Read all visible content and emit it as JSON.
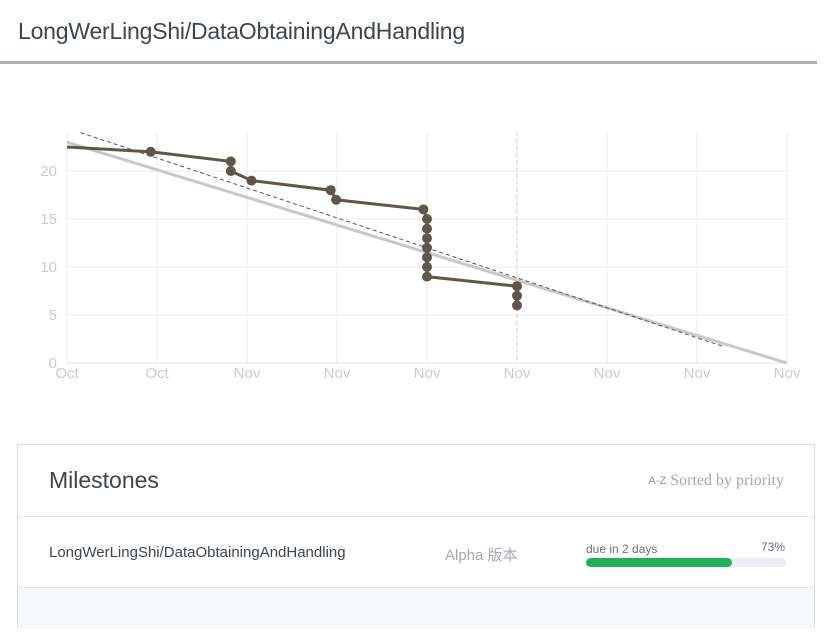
{
  "header": {
    "title": "LongWerLingShi/DataObtainingAndHandling"
  },
  "chart_data": {
    "type": "line",
    "y_ticks": [
      "0",
      "5",
      "10",
      "15",
      "20"
    ],
    "x_tick_labels": [
      "Oct",
      "Oct",
      "Nov",
      "Nov",
      "Nov",
      "Nov",
      "Nov",
      "Nov",
      "Nov"
    ],
    "ylim": [
      0,
      24
    ],
    "grid": true,
    "series": [
      {
        "role": "ideal",
        "color": "#c8c8c8",
        "points": [
          [
            0,
            23
          ],
          [
            8,
            0
          ]
        ]
      },
      {
        "role": "trend",
        "color": "#555555",
        "dashed": true,
        "points": [
          [
            0.15,
            24
          ],
          [
            7.3,
            1.7
          ]
        ]
      },
      {
        "role": "actual",
        "color": "#62554a",
        "points": [
          [
            0,
            22.5
          ],
          [
            0.93,
            22
          ],
          [
            1.82,
            21
          ],
          [
            1.82,
            20
          ],
          [
            2.05,
            19
          ],
          [
            2.93,
            18
          ],
          [
            2.99,
            17
          ],
          [
            3.96,
            16
          ],
          [
            4.0,
            15
          ],
          [
            4.0,
            14
          ],
          [
            4.0,
            13
          ],
          [
            4.0,
            12
          ],
          [
            4.0,
            11
          ],
          [
            4.0,
            10
          ],
          [
            4.0,
            9
          ],
          [
            5.0,
            8
          ],
          [
            5.0,
            7
          ],
          [
            5.0,
            6
          ]
        ],
        "markers_from_index": 1
      }
    ],
    "today_marker_x": 5.0
  },
  "milestones": {
    "title": "Milestones",
    "sort_icon": "A-Z",
    "sort_label": "Sorted by priority",
    "rows": [
      {
        "name": "LongWerLingShi/DataObtainingAndHandling",
        "version": "Alpha 版本",
        "due": "due in 2 days",
        "percent_label": "73%",
        "progress": 0.73
      }
    ]
  }
}
